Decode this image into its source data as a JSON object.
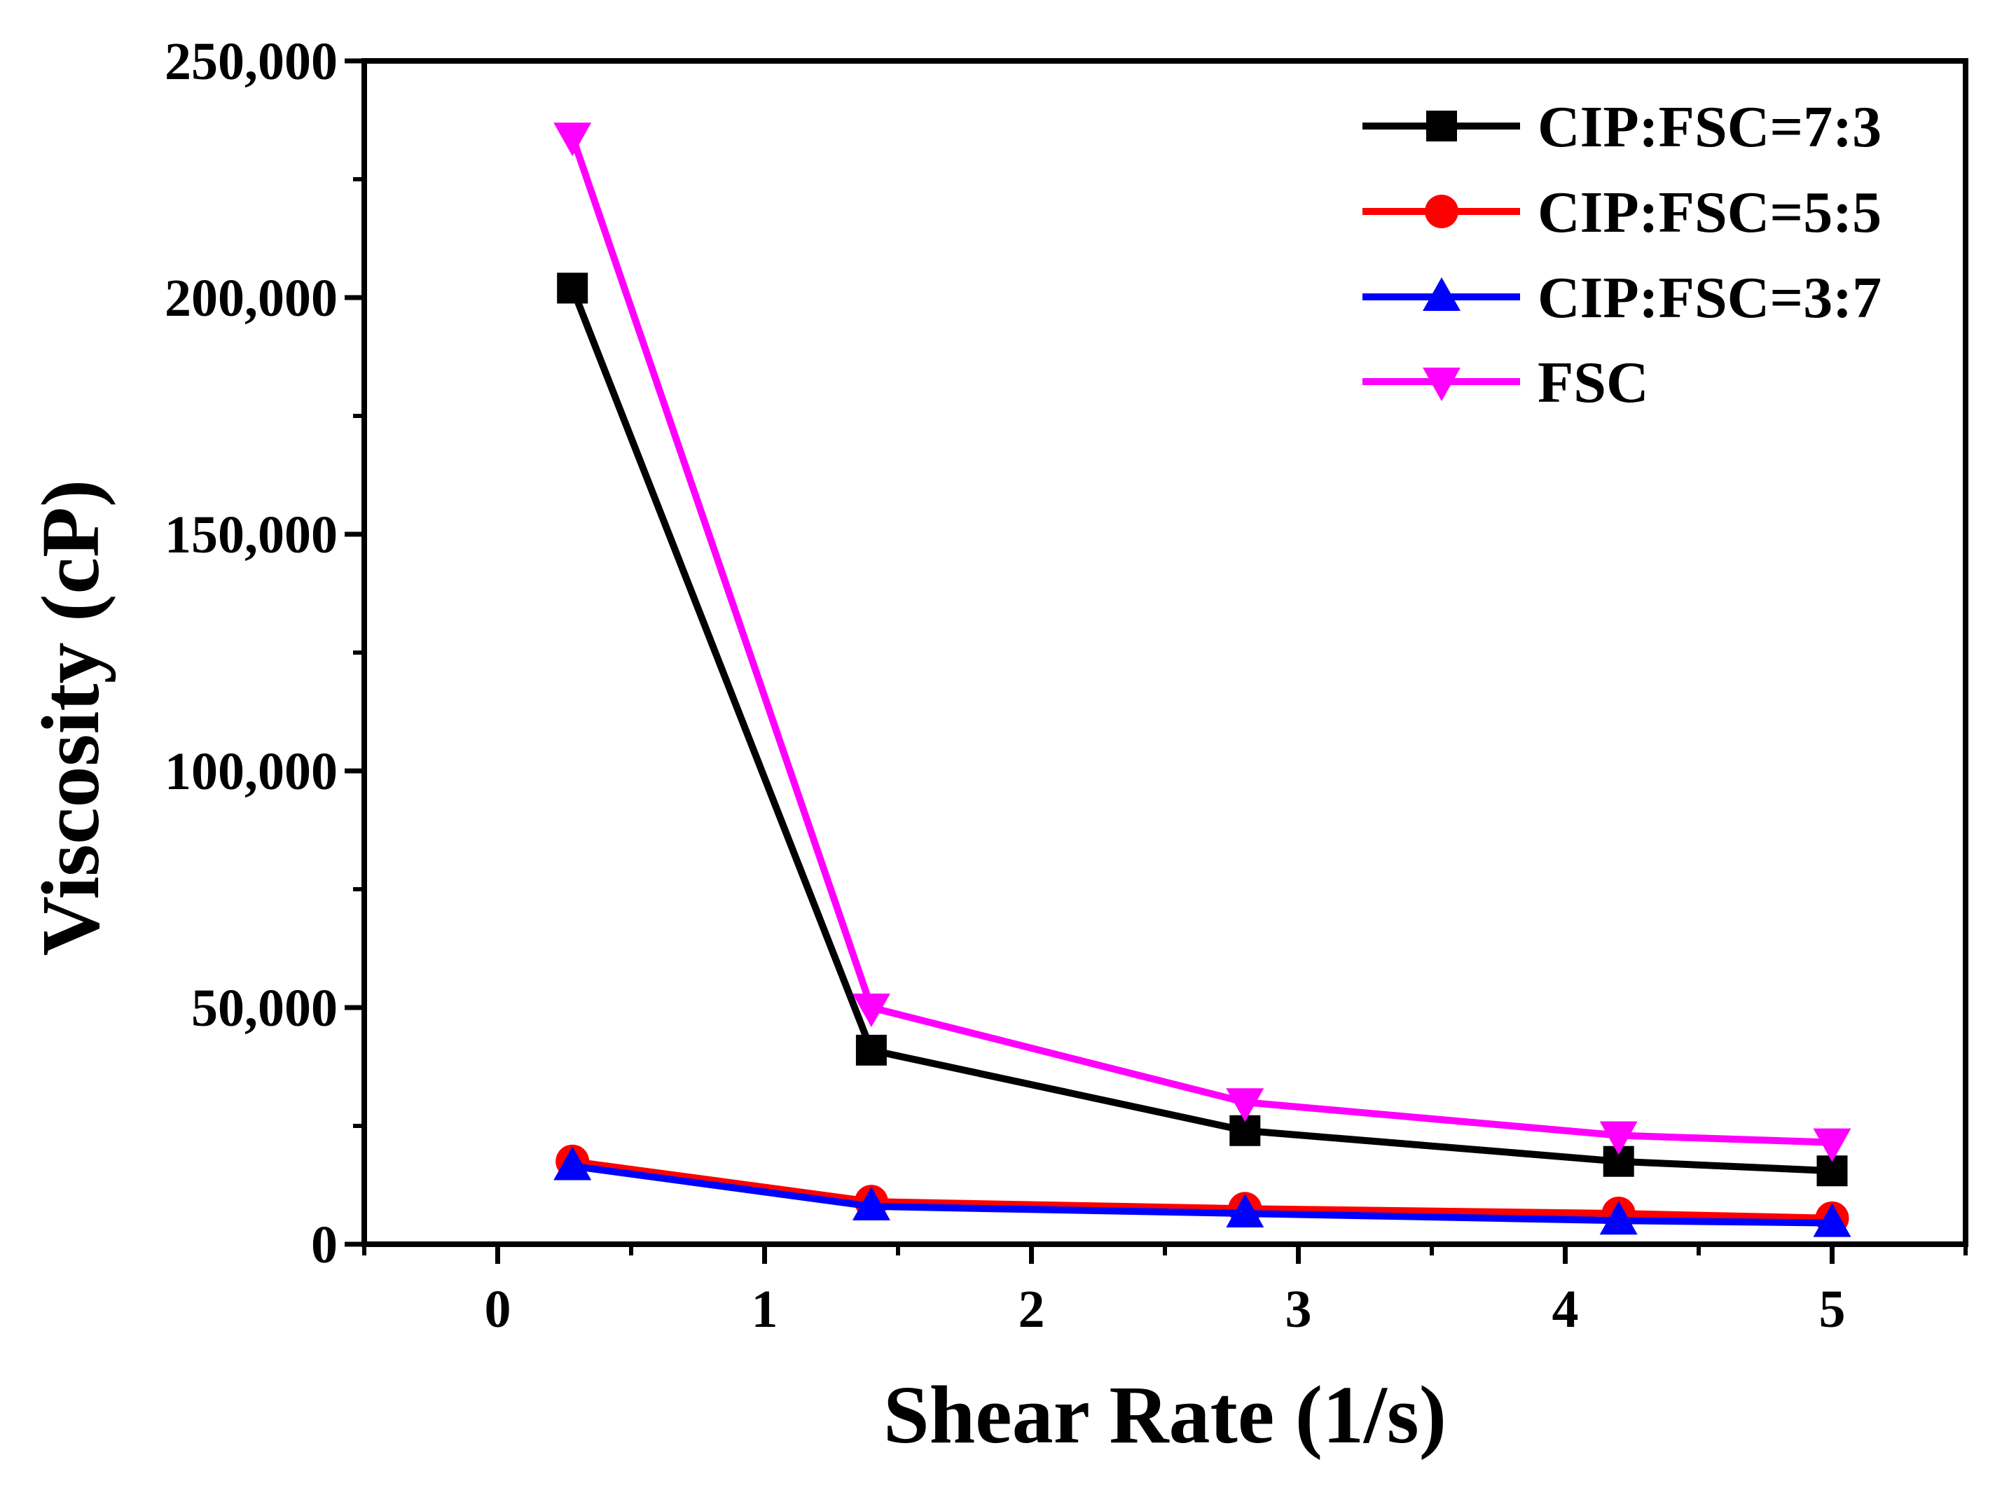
{
  "chart_data": {
    "type": "line",
    "title": "",
    "xlabel": "Shear Rate (1/s)",
    "ylabel": "Viscosity (cP)",
    "xlim": [
      -0.5,
      5.5
    ],
    "ylim": [
      0,
      250000
    ],
    "xticks": [
      0,
      1,
      2,
      3,
      4,
      5
    ],
    "xtick_labels": [
      "0",
      "1",
      "2",
      "3",
      "4",
      "5"
    ],
    "yticks": [
      0,
      50000,
      100000,
      150000,
      200000,
      250000
    ],
    "ytick_labels": [
      "0",
      "50,000",
      "100,000",
      "150,000",
      "200,000",
      "250,000"
    ],
    "grid": false,
    "legend_position": "top-right",
    "x": [
      0.28,
      1.4,
      2.8,
      4.2,
      5.0
    ],
    "series": [
      {
        "name": "CIP:FSC=7:3",
        "color": "#000000",
        "marker": "square",
        "values": [
          202000,
          41000,
          24000,
          17500,
          15500
        ]
      },
      {
        "name": "CIP:FSC=5:5",
        "color": "#ff0000",
        "marker": "circle",
        "values": [
          17500,
          9000,
          7500,
          6500,
          5500
        ]
      },
      {
        "name": "CIP:FSC=3:7",
        "color": "#0000ff",
        "marker": "triangle-up",
        "values": [
          16500,
          8000,
          6500,
          5000,
          4500
        ]
      },
      {
        "name": "FSC",
        "color": "#ff00ff",
        "marker": "triangle-down",
        "values": [
          234000,
          50000,
          30000,
          23000,
          21500
        ]
      }
    ]
  }
}
